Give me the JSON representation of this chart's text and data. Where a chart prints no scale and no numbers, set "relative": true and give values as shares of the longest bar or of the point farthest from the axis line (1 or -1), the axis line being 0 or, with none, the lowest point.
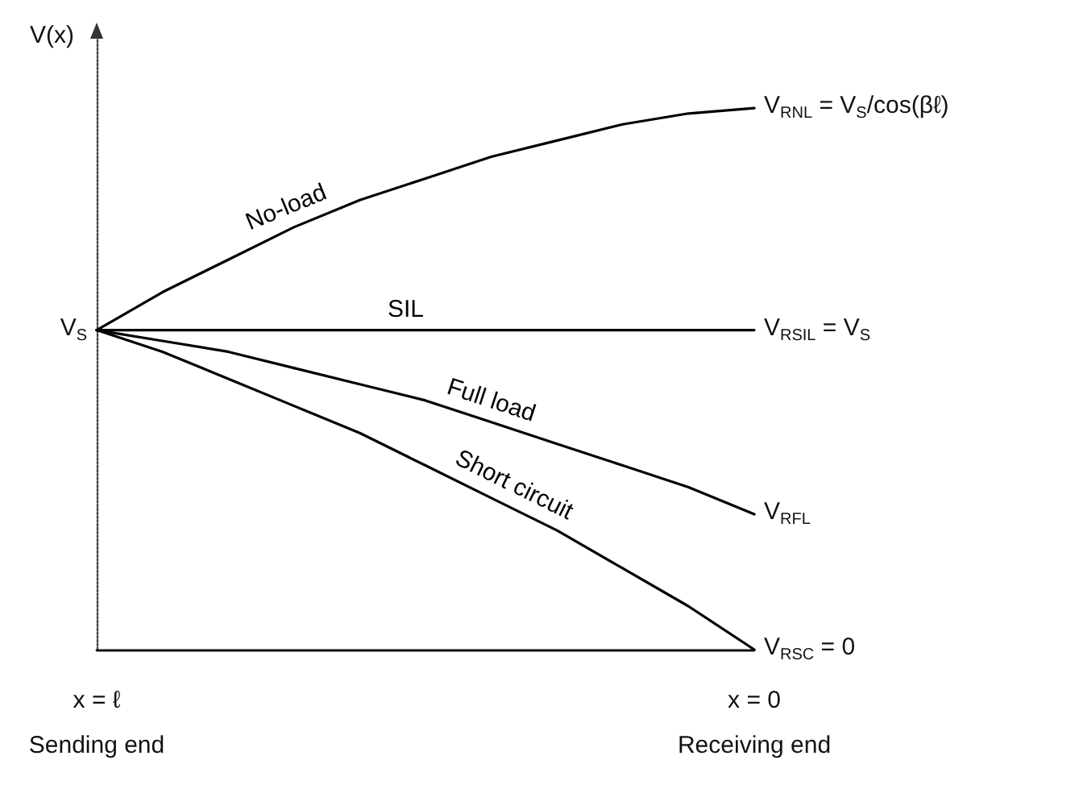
{
  "chart_data": {
    "type": "line",
    "relative": true,
    "ylabel": "V(x)",
    "categories": [
      "x = ℓ",
      null,
      null,
      null,
      null,
      null,
      null,
      null,
      null,
      null,
      "x = 0"
    ],
    "series": [
      {
        "name": "No-load",
        "color": "#000000",
        "values": [
          0.59,
          0.66,
          0.72,
          0.78,
          0.83,
          0.87,
          0.91,
          0.94,
          0.97,
          0.99,
          1
        ]
      },
      {
        "name": "SIL",
        "color": "#000000",
        "values": [
          0.59,
          0.59,
          0.59,
          0.59,
          0.59,
          0.59,
          0.59,
          0.59,
          0.59,
          0.59,
          0.59
        ]
      },
      {
        "name": "Full load",
        "color": "#000000",
        "values": [
          0.59,
          0.57,
          0.55,
          0.52,
          0.49,
          0.46,
          0.42,
          0.38,
          0.34,
          0.3,
          0.25
        ]
      },
      {
        "name": "Short circuit",
        "color": "#000000",
        "values": [
          0.59,
          0.55,
          0.5,
          0.45,
          0.4,
          0.34,
          0.28,
          0.22,
          0.15,
          0.08,
          0
        ]
      }
    ],
    "annotations": [
      {
        "text": "V$_{S}$",
        "x": "x = ℓ",
        "y": 0.59
      },
      {
        "text": "V$_{RNL}$ = V$_{S}$/cos(βℓ)",
        "x": "x = 0",
        "y": 1
      },
      {
        "text": "V$_{RSIL}$ = V$_{S}$",
        "x": "x = 0",
        "y": 0.59
      },
      {
        "text": "V$_{RFL}$",
        "x": "x = 0",
        "y": 0.25
      },
      {
        "text": "V$_{RSC}$ = 0",
        "x": "x = 0",
        "y": 0
      },
      "Sending end",
      "Receiving end"
    ],
    "grid": false,
    "legend": false,
    "marker": "none",
    "line_style": "solid"
  }
}
